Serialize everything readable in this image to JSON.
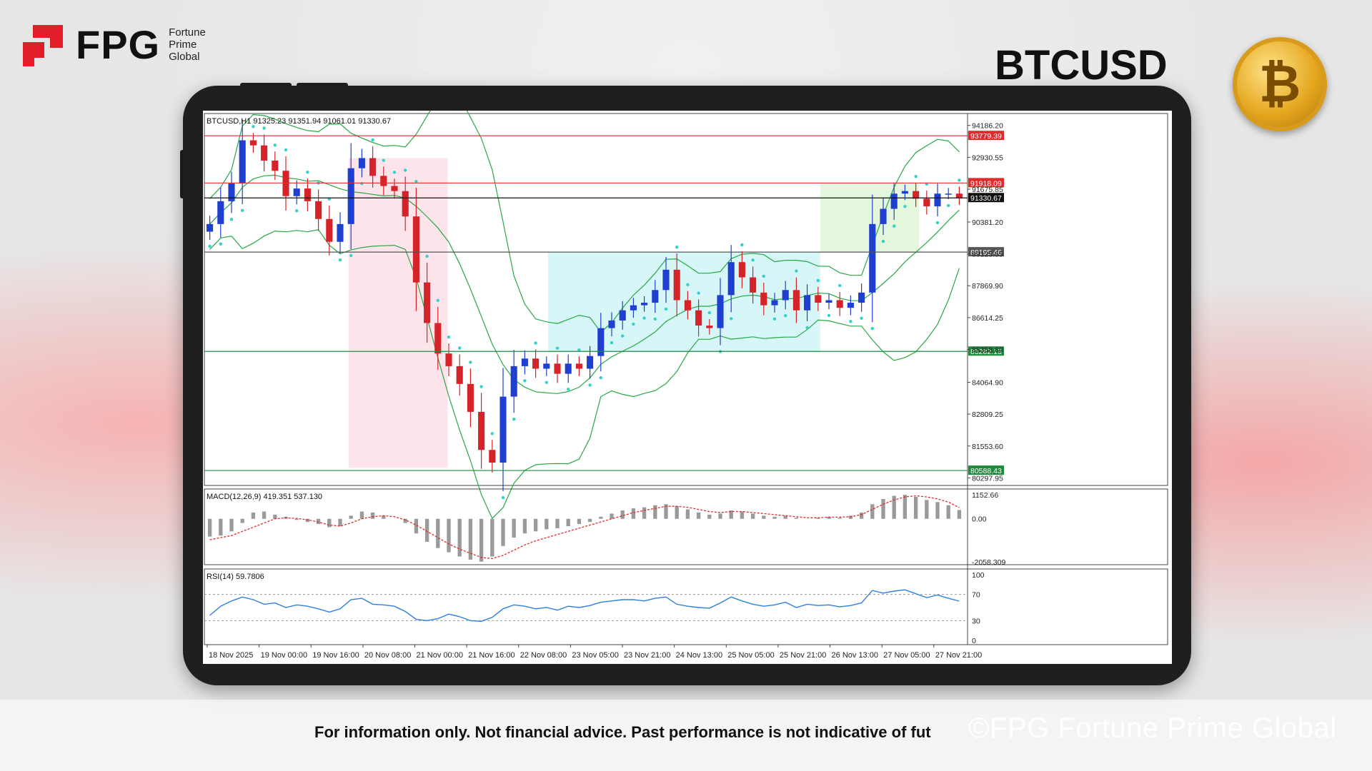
{
  "brand": {
    "logo_text": "FPG",
    "logo_sub": [
      "Fortune",
      "Prime",
      "Global"
    ],
    "symbol": "BTCUSD",
    "coin_icon": "bitcoin-coin-icon",
    "brand_color": "#e11d2a"
  },
  "footer": {
    "disclaimer": "For information only. Not financial advice. Past performance is not indicative of fut",
    "watermark": "©FPG Fortune Prime Global"
  },
  "chart_data": [
    {
      "type": "line",
      "header": "BTCUSD,H1  91325.23 91351.94 91061.01 91330.67",
      "symbol": "BTCUSD",
      "timeframe": "H1",
      "ohlc_last": {
        "open": 91325.23,
        "high": 91351.94,
        "low": 91061.01,
        "close": 91330.67
      },
      "ylim": [
        80000,
        94600
      ],
      "y_ticks": [
        "94186.20",
        "92930.55",
        "91675.85",
        "90381.20",
        "89125.55",
        "87869.90",
        "86614.25",
        "85358.60",
        "84064.90",
        "82809.25",
        "81553.60",
        "80297.95"
      ],
      "x_tick_labels": [
        "18 Nov 2025",
        "19 Nov 00:00",
        "19 Nov 16:00",
        "20 Nov 08:00",
        "21 Nov 00:00",
        "21 Nov 16:00",
        "22 Nov 08:00",
        "23 Nov 05:00",
        "23 Nov 21:00",
        "24 Nov 13:00",
        "25 Nov 05:00",
        "25 Nov 21:00",
        "26 Nov 13:00",
        "27 Nov 05:00",
        "27 Nov 21:00"
      ],
      "series": [
        {
          "values": [
            90300,
            91200,
            91900,
            93600,
            93400,
            92800,
            92400,
            91400,
            91700,
            91200,
            90500,
            89600,
            90300,
            92500,
            92900,
            92200,
            91800,
            91600,
            90600,
            88000,
            86400,
            85200,
            84700,
            84000,
            82900,
            81400,
            80900,
            83500,
            84700,
            85000,
            84600,
            84800,
            84400,
            84800,
            84600,
            85100,
            86200,
            86500,
            86900,
            87100,
            87200,
            87700,
            88500,
            87300,
            86900,
            86300,
            86200,
            87500,
            88800,
            88200,
            87600,
            87100,
            87300,
            87700,
            86900,
            87500,
            87200,
            87300,
            87000,
            87200,
            87600,
            90300,
            90900,
            91500,
            91600,
            91300,
            91000,
            91500,
            91500,
            91331
          ]
        }
      ],
      "horizontal_levels": [
        {
          "value": 93779.39,
          "label": "93779.39",
          "color": "#e02b2b"
        },
        {
          "value": 91918.09,
          "label": "91918.09",
          "color": "#e02b2b"
        },
        {
          "value": 91330.67,
          "label": "91330.67",
          "color": "#111111"
        },
        {
          "value": 89195.46,
          "label": "89195.46",
          "color": "#555555"
        },
        {
          "value": 85282.15,
          "label": "85282.15",
          "color": "#1e8a3c"
        },
        {
          "value": 80588.43,
          "label": "80588.43",
          "color": "#1e8a3c"
        }
      ],
      "overlay_label": "91675.85",
      "zones": [
        {
          "x_from": 0.19,
          "x_to": 0.32,
          "y_from": 80700,
          "y_to": 92900,
          "color": "#fde4ea"
        },
        {
          "x_from": 0.452,
          "x_to": 0.81,
          "y_from": 85282,
          "y_to": 89195,
          "color": "#d7f6f8"
        },
        {
          "x_from": 0.81,
          "x_to": 0.94,
          "y_from": 89195,
          "y_to": 91900,
          "color": "#e4f7dc"
        }
      ],
      "colors": {
        "bull": "#1f3fd0",
        "bear": "#d6232a",
        "bands": "#28a745",
        "sar": "#34d1c9"
      },
      "grid": false
    },
    {
      "type": "bar",
      "header": "MACD(12,26,9) 419.351 537.130",
      "indicator": "MACD(12,26,9)",
      "values_last": {
        "macd": 419.351,
        "signal": 537.13
      },
      "ylim": [
        -2058.309,
        1152.66
      ],
      "y_ticks": [
        "1152.66",
        "0.00",
        "-2058.309"
      ],
      "histogram": [
        -850,
        -800,
        -600,
        -200,
        300,
        350,
        200,
        100,
        -50,
        -150,
        -250,
        -400,
        -350,
        150,
        350,
        300,
        150,
        0,
        -200,
        -700,
        -1100,
        -1400,
        -1600,
        -1800,
        -1950,
        -2050,
        -1800,
        -1300,
        -900,
        -700,
        -600,
        -500,
        -450,
        -350,
        -250,
        -150,
        100,
        250,
        400,
        500,
        550,
        650,
        700,
        600,
        450,
        300,
        200,
        250,
        400,
        350,
        250,
        150,
        100,
        150,
        50,
        0,
        50,
        100,
        50,
        150,
        300,
        700,
        950,
        1100,
        1150,
        1050,
        900,
        800,
        650,
        419
      ],
      "signal": [
        -1000,
        -900,
        -800,
        -600,
        -400,
        -200,
        0,
        50,
        20,
        -50,
        -150,
        -300,
        -350,
        -200,
        0,
        100,
        150,
        100,
        -50,
        -300,
        -600,
        -900,
        -1200,
        -1450,
        -1650,
        -1850,
        -1900,
        -1750,
        -1500,
        -1250,
        -1050,
        -900,
        -750,
        -600,
        -450,
        -300,
        -150,
        0,
        150,
        300,
        400,
        500,
        600,
        600,
        550,
        450,
        350,
        300,
        350,
        350,
        300,
        250,
        200,
        150,
        100,
        50,
        50,
        80,
        80,
        100,
        200,
        450,
        700,
        900,
        1050,
        1100,
        1050,
        950,
        800,
        537
      ],
      "colors": {
        "histogram": "#9a9a9a",
        "signal": "#e02b2b"
      }
    },
    {
      "type": "line",
      "header": "RSI(14) 59.7806",
      "indicator": "RSI(14)",
      "value_last": 59.7806,
      "ylim": [
        0,
        100
      ],
      "y_ticks": [
        "100",
        "70",
        "30",
        "0"
      ],
      "levels": [
        70,
        30
      ],
      "values": [
        38,
        52,
        60,
        66,
        62,
        55,
        57,
        50,
        54,
        52,
        48,
        43,
        48,
        62,
        64,
        55,
        54,
        52,
        44,
        32,
        30,
        33,
        40,
        36,
        30,
        29,
        35,
        48,
        54,
        52,
        48,
        50,
        46,
        52,
        50,
        53,
        58,
        60,
        62,
        62,
        60,
        64,
        66,
        55,
        52,
        50,
        49,
        57,
        66,
        60,
        55,
        52,
        54,
        58,
        50,
        55,
        53,
        54,
        51,
        53,
        57,
        76,
        72,
        75,
        77,
        71,
        65,
        69,
        64,
        59.78
      ],
      "colors": {
        "line": "#2f7de1",
        "levels": "#9a9a9a"
      }
    }
  ]
}
